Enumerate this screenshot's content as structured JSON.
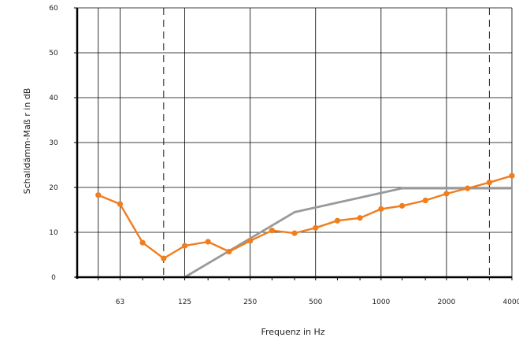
{
  "chart_data": {
    "type": "line",
    "title": "",
    "xlabel": "Frequenz in Hz",
    "ylabel": "Schalldämm-Maß r in dB",
    "x_scale": "log",
    "xlim": [
      40,
      4000
    ],
    "ylim": [
      0,
      60
    ],
    "y_ticks": [
      0,
      10,
      20,
      30,
      40,
      50,
      60
    ],
    "x_tick_labels": [
      {
        "value": 63,
        "label": "63"
      },
      {
        "value": 125,
        "label": "125"
      },
      {
        "value": 250,
        "label": "250"
      },
      {
        "value": 500,
        "label": "500"
      },
      {
        "value": 1000,
        "label": "1000"
      },
      {
        "value": 2000,
        "label": "2000"
      },
      {
        "value": 4000,
        "label": "4000"
      }
    ],
    "x_gridlines": [
      50,
      63,
      125,
      250,
      500,
      1000,
      2000,
      4000
    ],
    "dashed_verticals": [
      100,
      3150
    ],
    "grid": true,
    "series": [
      {
        "color": "#f07d1e",
        "markers": true,
        "points": [
          {
            "x": 50,
            "y": 18.3
          },
          {
            "x": 63,
            "y": 16.3
          },
          {
            "x": 80,
            "y": 7.7
          },
          {
            "x": 100,
            "y": 4.2
          },
          {
            "x": 125,
            "y": 7.0
          },
          {
            "x": 160,
            "y": 7.9
          },
          {
            "x": 200,
            "y": 5.7
          },
          {
            "x": 250,
            "y": 8.1
          },
          {
            "x": 315,
            "y": 10.4
          },
          {
            "x": 400,
            "y": 9.8
          },
          {
            "x": 500,
            "y": 11.0
          },
          {
            "x": 630,
            "y": 12.6
          },
          {
            "x": 800,
            "y": 13.2
          },
          {
            "x": 1000,
            "y": 15.2
          },
          {
            "x": 1250,
            "y": 15.9
          },
          {
            "x": 1600,
            "y": 17.1
          },
          {
            "x": 2000,
            "y": 18.6
          },
          {
            "x": 2500,
            "y": 19.8
          },
          {
            "x": 3150,
            "y": 21.1
          },
          {
            "x": 4000,
            "y": 22.6
          }
        ]
      },
      {
        "color": "#999999",
        "markers": false,
        "points": [
          {
            "x": 125,
            "y": 0
          },
          {
            "x": 400,
            "y": 14.5
          },
          {
            "x": 1250,
            "y": 19.8
          },
          {
            "x": 4000,
            "y": 19.8
          }
        ]
      }
    ]
  }
}
